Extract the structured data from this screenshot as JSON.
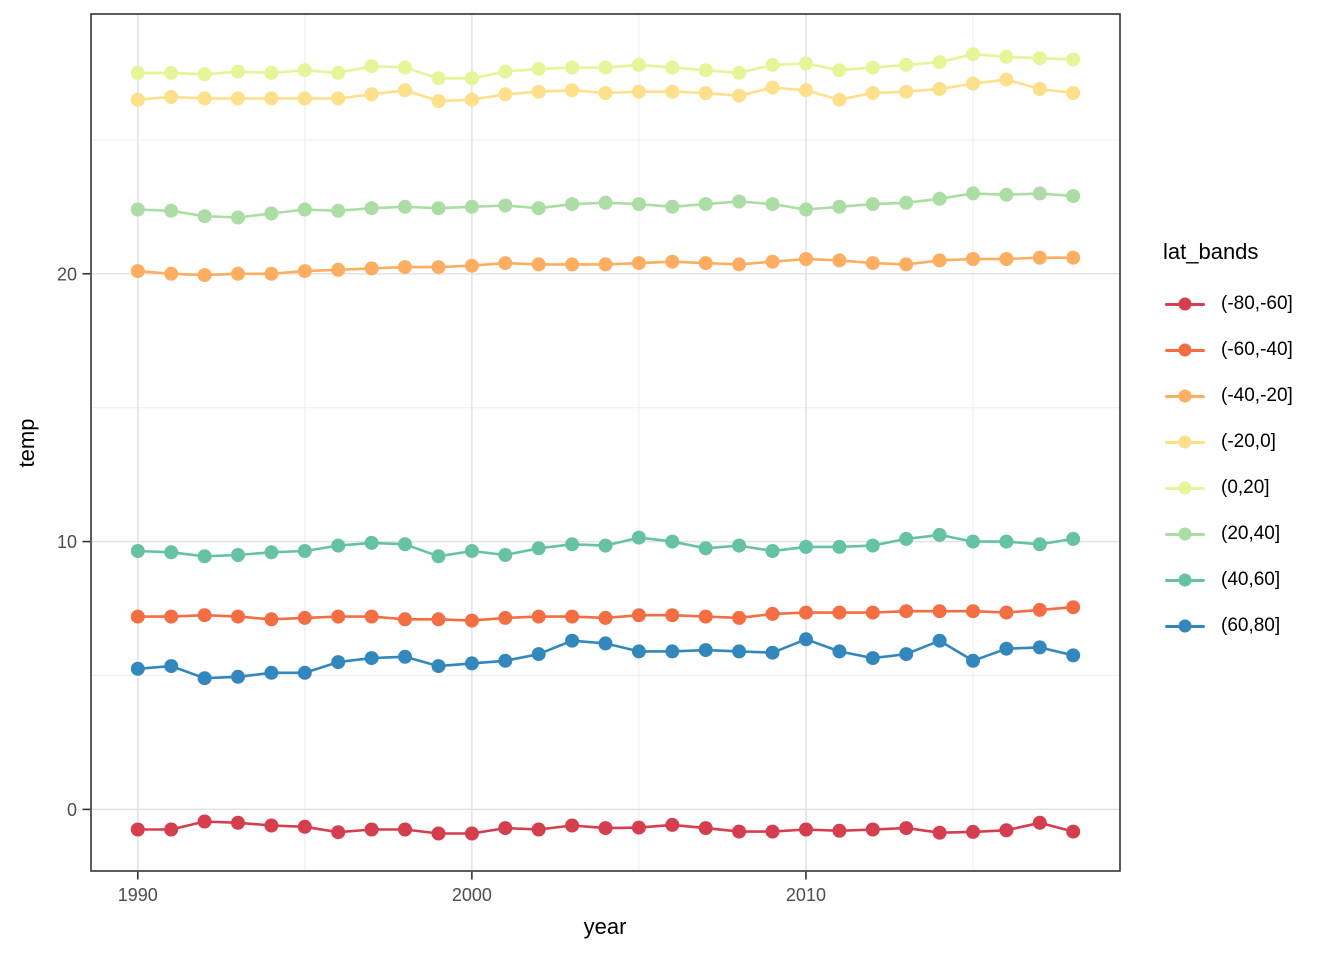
{
  "style": {
    "background": "#ffffff",
    "panel_border_color": "#333333",
    "grid_major_color": "#e3e3e3",
    "grid_minor_color": "#f0f0f0",
    "tick_mark_color": "#333333",
    "tick_label_color": "#4d4d4d",
    "axis_title_color": "#000000"
  },
  "chart_data": {
    "type": "line",
    "title": "",
    "xlabel": "year",
    "ylabel": "temp",
    "legend_title": "lat_bands",
    "legend_position": "right",
    "grid": "on",
    "xlim": [
      1988.6,
      2019.4
    ],
    "ylim": [
      -2.3,
      29.7
    ],
    "x_ticks": [
      1990,
      2000,
      2010
    ],
    "x_minor_ticks": [
      1995,
      2005,
      2015
    ],
    "y_ticks": [
      0,
      10,
      20
    ],
    "y_minor_ticks": [
      5,
      15,
      25
    ],
    "x": [
      1990,
      1991,
      1992,
      1993,
      1994,
      1995,
      1996,
      1997,
      1998,
      1999,
      2000,
      2001,
      2002,
      2003,
      2004,
      2005,
      2006,
      2007,
      2008,
      2009,
      2010,
      2011,
      2012,
      2013,
      2014,
      2015,
      2016,
      2017,
      2018
    ],
    "series": [
      {
        "name": "(-80,-60]",
        "color": "#d53e4f",
        "values": [
          -0.75,
          -0.75,
          -0.45,
          -0.5,
          -0.6,
          -0.65,
          -0.85,
          -0.75,
          -0.75,
          -0.9,
          -0.9,
          -0.7,
          -0.75,
          -0.6,
          -0.7,
          -0.68,
          -0.58,
          -0.7,
          -0.83,
          -0.83,
          -0.75,
          -0.8,
          -0.75,
          -0.7,
          -0.87,
          -0.84,
          -0.78,
          -0.5,
          -0.83
        ]
      },
      {
        "name": "(-60,-40]",
        "color": "#f46d43",
        "values": [
          7.2,
          7.2,
          7.25,
          7.2,
          7.1,
          7.15,
          7.2,
          7.2,
          7.1,
          7.1,
          7.05,
          7.15,
          7.2,
          7.2,
          7.15,
          7.25,
          7.25,
          7.2,
          7.15,
          7.3,
          7.35,
          7.35,
          7.35,
          7.4,
          7.4,
          7.4,
          7.35,
          7.45,
          7.55
        ]
      },
      {
        "name": "(-40,-20]",
        "color": "#fdae61",
        "values": [
          20.1,
          20.0,
          19.95,
          20.0,
          20.0,
          20.1,
          20.15,
          20.2,
          20.25,
          20.25,
          20.3,
          20.4,
          20.35,
          20.35,
          20.35,
          20.4,
          20.45,
          20.4,
          20.35,
          20.45,
          20.55,
          20.5,
          20.4,
          20.35,
          20.5,
          20.55,
          20.55,
          20.6,
          20.6
        ]
      },
      {
        "name": "(-20,0]",
        "color": "#fee08b",
        "values": [
          26.5,
          26.6,
          26.55,
          26.55,
          26.55,
          26.55,
          26.55,
          26.7,
          26.85,
          26.45,
          26.5,
          26.7,
          26.8,
          26.85,
          26.75,
          26.8,
          26.8,
          26.75,
          26.65,
          26.95,
          26.85,
          26.5,
          26.75,
          26.8,
          26.9,
          27.1,
          27.25,
          26.9,
          26.75
        ]
      },
      {
        "name": "(0,20]",
        "color": "#e6f598",
        "values": [
          27.5,
          27.5,
          27.45,
          27.55,
          27.5,
          27.6,
          27.5,
          27.75,
          27.7,
          27.3,
          27.3,
          27.55,
          27.65,
          27.7,
          27.7,
          27.8,
          27.7,
          27.6,
          27.5,
          27.8,
          27.85,
          27.6,
          27.7,
          27.8,
          27.9,
          28.2,
          28.1,
          28.05,
          28.0
        ]
      },
      {
        "name": "(20,40]",
        "color": "#abdda4",
        "values": [
          22.4,
          22.35,
          22.15,
          22.1,
          22.25,
          22.4,
          22.35,
          22.45,
          22.5,
          22.45,
          22.5,
          22.55,
          22.45,
          22.6,
          22.65,
          22.6,
          22.5,
          22.6,
          22.7,
          22.6,
          22.4,
          22.5,
          22.6,
          22.65,
          22.8,
          23.0,
          22.95,
          23.0,
          22.9
        ]
      },
      {
        "name": "(40,60]",
        "color": "#66c2a5",
        "values": [
          9.65,
          9.6,
          9.45,
          9.5,
          9.6,
          9.65,
          9.85,
          9.95,
          9.9,
          9.45,
          9.65,
          9.5,
          9.75,
          9.9,
          9.85,
          10.15,
          10.0,
          9.75,
          9.85,
          9.65,
          9.8,
          9.8,
          9.85,
          10.1,
          10.25,
          10.0,
          10.0,
          9.9,
          10.1
        ]
      },
      {
        "name": "(60,80]",
        "color": "#3288bd",
        "values": [
          5.25,
          5.35,
          4.9,
          4.95,
          5.1,
          5.1,
          5.5,
          5.65,
          5.7,
          5.35,
          5.45,
          5.55,
          5.8,
          6.3,
          6.2,
          5.9,
          5.9,
          5.95,
          5.9,
          5.85,
          6.35,
          5.9,
          5.65,
          5.8,
          6.3,
          5.55,
          6.0,
          6.05,
          5.75
        ]
      }
    ]
  }
}
